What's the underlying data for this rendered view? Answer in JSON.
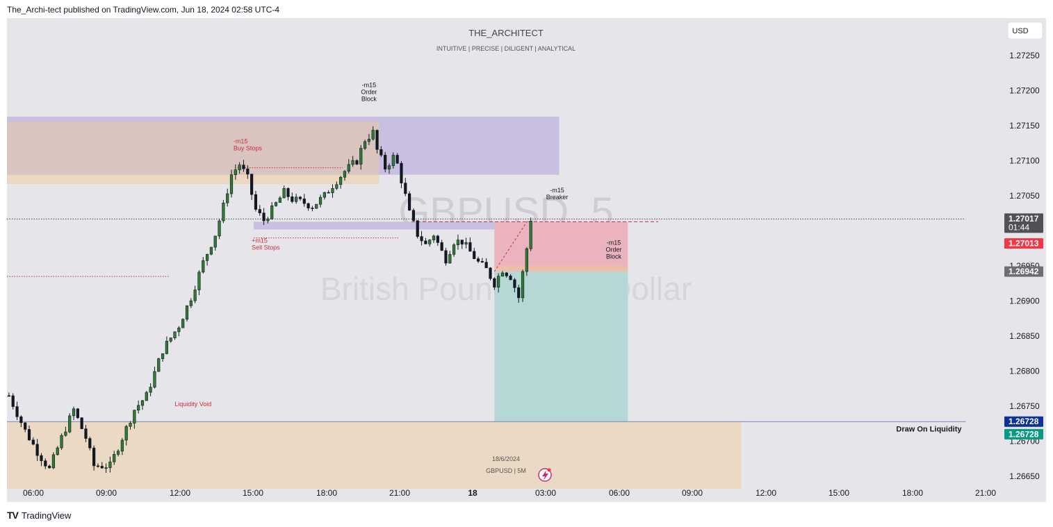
{
  "header": {
    "published_text": "The_Archi-tect published on TradingView.com, Jun 18, 2024 02:58 UTC-4"
  },
  "chart_header": {
    "title": "THE_ARCHITECT",
    "subtitle": "INTUITIVE | PRECISE | DILIGENT | ANALYTICAL"
  },
  "currency_button": "USD",
  "watermark": {
    "symbol": "GBPUSD, 5",
    "description": "British Pound / U.S. Dollar"
  },
  "bottom_info": {
    "date": "18/6/2024",
    "symbol": "GBPUSD | 5M"
  },
  "footer": {
    "logo": "TV",
    "brand": "TradingView"
  },
  "colors": {
    "up": "#131722",
    "down": "#131722",
    "bull_body": "#2e7d32",
    "purple_zone": "#c9bfe0",
    "orange_zone": "#ead9c4",
    "red_zone": "#eab3bd",
    "teal_zone": "#b5d8d6",
    "label_red": "#cc2e3a",
    "price_current": "#505055",
    "price_red": "#f23645",
    "price_blue": "#0c3299",
    "price_teal": "#089981"
  },
  "chart_data": {
    "type": "candlestick",
    "symbol": "GBPUSD",
    "timeframe": "5",
    "x_tick_labels": [
      "06:00",
      "09:00",
      "12:00",
      "15:00",
      "18:00",
      "21:00",
      "18",
      "03:00",
      "06:00",
      "09:00",
      "12:00",
      "15:00",
      "18:00",
      "21:00"
    ],
    "y_tick_labels": [
      "1.27250",
      "1.27200",
      "1.27150",
      "1.27100",
      "1.27050",
      "1.26950",
      "1.26900",
      "1.26850",
      "1.26800",
      "1.26750",
      "1.26700",
      "1.26650"
    ],
    "ylim": [
      1.2663,
      1.2731
    ],
    "path": [
      [
        0,
        1.26765
      ],
      [
        4,
        1.26715
      ],
      [
        7,
        1.26685
      ],
      [
        10,
        1.2666
      ],
      [
        13,
        1.26705
      ],
      [
        16,
        1.26745
      ],
      [
        19,
        1.26705
      ],
      [
        21,
        1.26665
      ],
      [
        25,
        1.26665
      ],
      [
        28,
        1.26705
      ],
      [
        31,
        1.26745
      ],
      [
        34,
        1.26765
      ],
      [
        38,
        1.2683
      ],
      [
        42,
        1.26865
      ],
      [
        45,
        1.26905
      ],
      [
        48,
        1.26955
      ],
      [
        51,
        1.26995
      ],
      [
        53,
        1.27035
      ],
      [
        55,
        1.2708
      ],
      [
        57,
        1.27095
      ],
      [
        59,
        1.27075
      ],
      [
        61,
        1.2703
      ],
      [
        63,
        1.27015
      ],
      [
        65,
        1.2703
      ],
      [
        68,
        1.27055
      ],
      [
        70,
        1.27045
      ],
      [
        73,
        1.2704
      ],
      [
        75,
        1.27035
      ],
      [
        78,
        1.2705
      ],
      [
        80,
        1.27065
      ],
      [
        83,
        1.27085
      ],
      [
        86,
        1.271
      ],
      [
        88,
        1.2713
      ],
      [
        90,
        1.2714
      ],
      [
        91,
        1.27115
      ],
      [
        93,
        1.2709
      ],
      [
        95,
        1.27105
      ],
      [
        96,
        1.27095
      ],
      [
        98,
        1.2705
      ],
      [
        99,
        1.27025
      ],
      [
        101,
        1.26995
      ],
      [
        103,
        1.2698
      ],
      [
        105,
        1.26995
      ],
      [
        107,
        1.2697
      ],
      [
        108,
        1.2696
      ],
      [
        110,
        1.26985
      ],
      [
        112,
        1.26985
      ],
      [
        114,
        1.2697
      ],
      [
        116,
        1.26955
      ],
      [
        118,
        1.26945
      ],
      [
        120,
        1.26925
      ],
      [
        122,
        1.26945
      ],
      [
        124,
        1.26935
      ],
      [
        125,
        1.2692
      ],
      [
        126,
        1.26905
      ],
      [
        127,
        1.2694
      ],
      [
        128,
        1.26975
      ],
      [
        129,
        1.27017
      ]
    ],
    "zones": [
      {
        "name": "purple-order-block-zone",
        "x0": 0,
        "x1": 136.5,
        "y0": 1.2708,
        "y1": 1.27163
      },
      {
        "name": "orange-top-zone",
        "x0": 0,
        "x1": 92,
        "y0": 1.27067,
        "y1": 1.27156
      },
      {
        "name": "purple-breaker-zone",
        "x0": 61,
        "x1": 138,
        "y0": 1.27002,
        "y1": 1.27013
      },
      {
        "name": "red-stop-zone",
        "x0": 120.5,
        "x1": 153.5,
        "y0": 1.26942,
        "y1": 1.27013
      },
      {
        "name": "orange-order-block-zone",
        "x0": 120.5,
        "x1": 153.5,
        "y0": 1.26942,
        "y1": 1.2695
      },
      {
        "name": "teal-target-zone",
        "x0": 120.5,
        "x1": 153.5,
        "y0": 1.26728,
        "y1": 1.26942
      },
      {
        "name": "orange-liquidity-void-zone",
        "x0": 0,
        "x1": 181.5,
        "y0": 1.26632,
        "y1": 1.26728
      }
    ],
    "lines": [
      {
        "name": "buy-stops-line",
        "x0": 57,
        "x1": 83,
        "y": 1.2709,
        "dash": "dotted"
      },
      {
        "name": "sell-stops-line",
        "x0": 61,
        "x1": 97,
        "y": 1.2699,
        "dash": "dotted"
      },
      {
        "name": "left-dotted-line",
        "x0": 0,
        "x1": 40,
        "y": 1.26935,
        "dash": "dotted"
      },
      {
        "name": "breaker-dashed-line",
        "x0": 100,
        "x1": 161,
        "y": 1.27013,
        "dash": "dashed"
      },
      {
        "name": "current-price-line",
        "x0": 0,
        "x1": 237,
        "y": 1.27017,
        "dash": "dotted"
      },
      {
        "name": "draw-on-liquidity-line",
        "x0": 0,
        "x1": 237,
        "y": 1.26728,
        "dash": "solid"
      }
    ],
    "annotations": [
      {
        "name": "order-block-label-top",
        "lines": [
          "-m15",
          "Order",
          "Block"
        ],
        "x": 89.5,
        "y": 1.27205,
        "color": "dark"
      },
      {
        "name": "buy-stops-label",
        "lines": [
          "-m15",
          "Buy Stops"
        ],
        "x": 56,
        "y": 1.27125,
        "color": "red",
        "align": "left"
      },
      {
        "name": "sell-stops-label",
        "lines": [
          "+m15",
          "Sell Stops"
        ],
        "x": 60.5,
        "y": 1.26983,
        "color": "red",
        "align": "left"
      },
      {
        "name": "breaker-label",
        "lines": [
          "-m15",
          "Breaker"
        ],
        "x": 136,
        "y": 1.27055,
        "color": "dark"
      },
      {
        "name": "order-block-label-right",
        "lines": [
          "-m15",
          "Order",
          "Block"
        ],
        "x": 150,
        "y": 1.2698,
        "color": "dark"
      },
      {
        "name": "liquidity-void-label",
        "lines": [
          "Liquidity Void"
        ],
        "x": 46,
        "y": 1.2675,
        "color": "red"
      },
      {
        "name": "draw-on-liquidity-label",
        "lines": [
          "Draw On Liquidity"
        ],
        "x": 236,
        "y": 1.26714,
        "color": "dark",
        "bold": true,
        "align": "right"
      }
    ],
    "price_labels": [
      {
        "name": "current-price-badge",
        "value": "1.27017",
        "sub": "01:44",
        "y": 1.27017,
        "color": "#505055"
      },
      {
        "name": "red-price-badge",
        "value": "1.27013",
        "y": 1.26982,
        "color": "#f23645"
      },
      {
        "name": "gray-price-badge",
        "value": "1.26942",
        "y": 1.26942,
        "color": "#6d6e74"
      },
      {
        "name": "blue-price-badge",
        "value": "1.26728",
        "y": 1.26728,
        "color": "#0c3299"
      },
      {
        "name": "teal-price-badge",
        "value": "1.26728",
        "y": 1.2671,
        "color": "#089981"
      }
    ]
  }
}
